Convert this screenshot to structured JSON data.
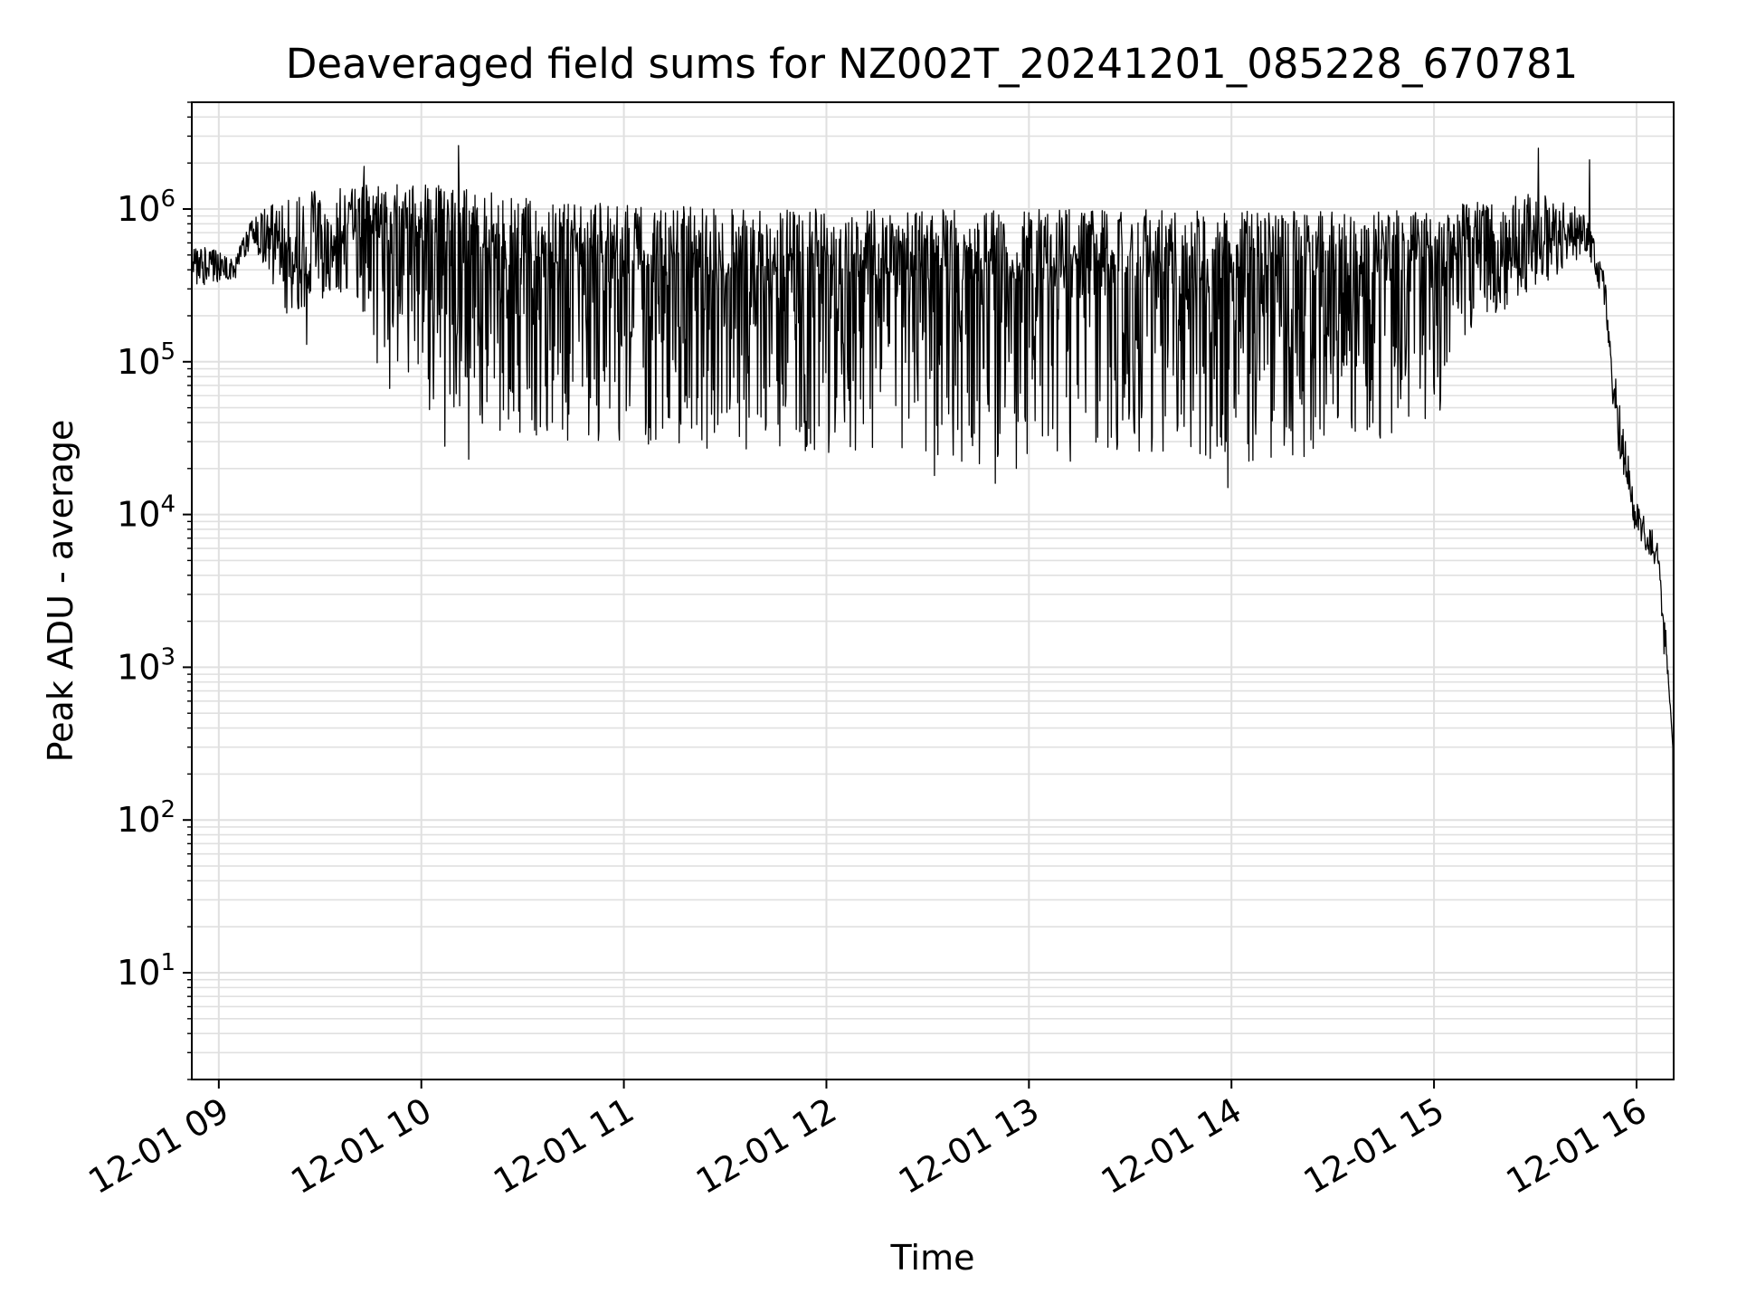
{
  "chart_data": {
    "type": "line",
    "title": "Deaveraged field sums for NZ002T_20241201_085228_670781",
    "xlabel": "Time",
    "ylabel": "Peak ADU - average",
    "yscale": "log",
    "grid": true,
    "xlim": [
      "2024-12-01 08:52",
      "2024-12-01 16:11"
    ],
    "ylim": [
      2,
      5000000
    ],
    "x_ticks": [
      {
        "t": "2024-12-01 09:00",
        "label": "12-01 09"
      },
      {
        "t": "2024-12-01 10:00",
        "label": "12-01 10"
      },
      {
        "t": "2024-12-01 11:00",
        "label": "12-01 11"
      },
      {
        "t": "2024-12-01 12:00",
        "label": "12-01 12"
      },
      {
        "t": "2024-12-01 13:00",
        "label": "12-01 13"
      },
      {
        "t": "2024-12-01 14:00",
        "label": "12-01 14"
      },
      {
        "t": "2024-12-01 15:00",
        "label": "12-01 15"
      },
      {
        "t": "2024-12-01 16:00",
        "label": "12-01 16"
      }
    ],
    "y_ticks": [
      {
        "value": 10,
        "base": "10",
        "exp": "1"
      },
      {
        "value": 100,
        "base": "10",
        "exp": "2"
      },
      {
        "value": 1000,
        "base": "10",
        "exp": "3"
      },
      {
        "value": 10000,
        "base": "10",
        "exp": "4"
      },
      {
        "value": 100000,
        "base": "10",
        "exp": "5"
      },
      {
        "value": 1000000,
        "base": "10",
        "exp": "6"
      }
    ],
    "series": [
      {
        "color": "#000000",
        "envelope": [
          {
            "t": "2024-12-01 08:52",
            "upper": 600000,
            "lower": 300000
          },
          {
            "t": "2024-12-01 09:05",
            "upper": 500000,
            "lower": 350000
          },
          {
            "t": "2024-12-01 09:10",
            "upper": 900000,
            "lower": 600000
          },
          {
            "t": "2024-12-01 09:20",
            "upper": 1200000,
            "lower": 200000
          },
          {
            "t": "2024-12-01 09:40",
            "upper": 1500000,
            "lower": 300000
          },
          {
            "t": "2024-12-01 09:50",
            "upper": 1500000,
            "lower": 60000
          },
          {
            "t": "2024-12-01 10:10",
            "upper": 1400000,
            "lower": 40000
          },
          {
            "t": "2024-12-01 10:30",
            "upper": 1200000,
            "lower": 30000
          },
          {
            "t": "2024-12-01 11:00",
            "upper": 1100000,
            "lower": 30000
          },
          {
            "t": "2024-12-01 11:30",
            "upper": 1000000,
            "lower": 25000
          },
          {
            "t": "2024-12-01 12:00",
            "upper": 1000000,
            "lower": 25000
          },
          {
            "t": "2024-12-01 12:30",
            "upper": 1000000,
            "lower": 20000
          },
          {
            "t": "2024-12-01 13:00",
            "upper": 1000000,
            "lower": 20000
          },
          {
            "t": "2024-12-01 13:30",
            "upper": 1000000,
            "lower": 25000
          },
          {
            "t": "2024-12-01 14:00",
            "upper": 1000000,
            "lower": 20000
          },
          {
            "t": "2024-12-01 14:30",
            "upper": 1000000,
            "lower": 25000
          },
          {
            "t": "2024-12-01 15:00",
            "upper": 1000000,
            "lower": 35000
          },
          {
            "t": "2024-12-01 15:10",
            "upper": 1100000,
            "lower": 150000
          },
          {
            "t": "2024-12-01 15:30",
            "upper": 1300000,
            "lower": 300000
          },
          {
            "t": "2024-12-01 15:45",
            "upper": 1000000,
            "lower": 500000
          },
          {
            "t": "2024-12-01 15:50",
            "upper": 500000,
            "lower": 250000
          },
          {
            "t": "2024-12-01 15:53",
            "upper": 100000,
            "lower": 50000
          },
          {
            "t": "2024-12-01 15:56",
            "upper": 40000,
            "lower": 15000
          },
          {
            "t": "2024-12-01 16:00",
            "upper": 12000,
            "lower": 7000
          },
          {
            "t": "2024-12-01 16:06",
            "upper": 7000,
            "lower": 4500
          },
          {
            "t": "2024-12-01 16:10",
            "upper": 1000,
            "lower": 300
          }
        ],
        "spikes": [
          {
            "t": "2024-12-01 09:43",
            "value": 1900000
          },
          {
            "t": "2024-12-01 10:11",
            "value": 2600000
          },
          {
            "t": "2024-12-01 15:31",
            "value": 2500000
          },
          {
            "t": "2024-12-01 15:46",
            "value": 2100000
          },
          {
            "t": "2024-12-01 09:26",
            "value": 130000
          },
          {
            "t": "2024-12-01 10:07",
            "value": 28000
          },
          {
            "t": "2024-12-01 10:14",
            "value": 23000
          },
          {
            "t": "2024-12-01 12:32",
            "value": 18000
          },
          {
            "t": "2024-12-01 12:50",
            "value": 16000
          },
          {
            "t": "2024-12-01 13:59",
            "value": 15000
          }
        ]
      }
    ]
  }
}
